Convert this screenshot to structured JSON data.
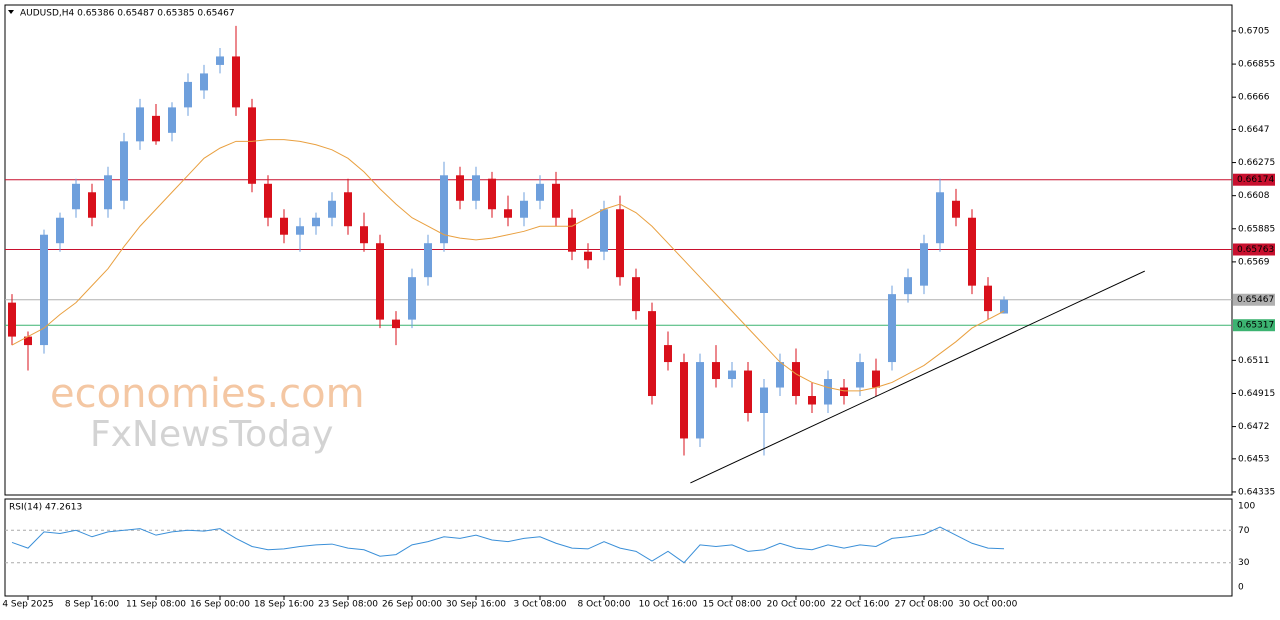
{
  "chart_data": [
    {
      "type": "candlestick",
      "title": "AUDUSD,H4  0.65386 0.65487 0.65385 0.65467",
      "categories": [
        null,
        "4 Sep 2025",
        null,
        null,
        null,
        "8 Sep 16:00",
        null,
        null,
        null,
        "11 Sep 08:00",
        null,
        null,
        null,
        "16 Sep 00:00",
        null,
        null,
        null,
        "18 Sep 16:00",
        null,
        null,
        null,
        "23 Sep 08:00",
        null,
        null,
        null,
        "26 Sep 00:00",
        null,
        null,
        null,
        "30 Sep 16:00",
        null,
        null,
        null,
        "3 Oct 08:00",
        null,
        null,
        null,
        "8 Oct 00:00",
        null,
        null,
        null,
        "10 Oct 16:00",
        null,
        null,
        null,
        "15 Oct 08:00",
        null,
        null,
        null,
        "20 Oct 00:00",
        null,
        null,
        null,
        "22 Oct 16:00",
        null,
        null,
        null,
        "27 Oct 08:00",
        null,
        null,
        null,
        "30 Oct 00:00",
        null
      ],
      "open": [
        0.6545,
        0.6525,
        0.652,
        0.658,
        0.66,
        0.661,
        0.66,
        0.6605,
        0.664,
        0.6655,
        0.6645,
        0.666,
        0.667,
        0.6685,
        0.669,
        0.666,
        0.6615,
        0.6595,
        0.6585,
        0.659,
        0.6595,
        0.661,
        0.659,
        0.658,
        0.6535,
        0.6535,
        0.656,
        0.658,
        0.662,
        0.6605,
        0.6618,
        0.66,
        0.6595,
        0.6605,
        0.6615,
        0.6595,
        0.6575,
        0.6575,
        0.66,
        0.656,
        0.654,
        0.652,
        0.651,
        0.6465,
        0.651,
        0.65,
        0.6505,
        0.648,
        0.6495,
        0.651,
        0.649,
        0.6485,
        0.6495,
        0.6495,
        0.6505,
        0.651,
        0.655,
        0.6555,
        0.658,
        0.6605,
        0.6595,
        0.6555,
        0.65386
      ],
      "high": [
        0.655,
        0.6528,
        0.6588,
        0.6598,
        0.6618,
        0.6615,
        0.6625,
        0.6645,
        0.6665,
        0.6662,
        0.6663,
        0.668,
        0.6685,
        0.6695,
        0.6708,
        0.6665,
        0.662,
        0.66,
        0.6595,
        0.6598,
        0.661,
        0.6618,
        0.6598,
        0.6585,
        0.654,
        0.6565,
        0.6585,
        0.6628,
        0.6625,
        0.6625,
        0.6622,
        0.6608,
        0.661,
        0.662,
        0.6622,
        0.66,
        0.658,
        0.6605,
        0.6608,
        0.6565,
        0.6545,
        0.6528,
        0.6515,
        0.6515,
        0.652,
        0.651,
        0.651,
        0.65,
        0.6515,
        0.6518,
        0.6498,
        0.6505,
        0.65,
        0.6515,
        0.6512,
        0.6555,
        0.6565,
        0.6585,
        0.6618,
        0.6612,
        0.66,
        0.656,
        0.65487
      ],
      "low": [
        0.652,
        0.6505,
        0.6515,
        0.6575,
        0.6595,
        0.659,
        0.6595,
        0.66,
        0.6635,
        0.6638,
        0.664,
        0.6655,
        0.6665,
        0.668,
        0.6655,
        0.661,
        0.659,
        0.658,
        0.6575,
        0.6585,
        0.659,
        0.6585,
        0.6575,
        0.653,
        0.652,
        0.653,
        0.6555,
        0.6575,
        0.66,
        0.66,
        0.6595,
        0.659,
        0.659,
        0.66,
        0.659,
        0.657,
        0.6565,
        0.657,
        0.6555,
        0.6535,
        0.6485,
        0.6505,
        0.6455,
        0.646,
        0.6495,
        0.6495,
        0.6475,
        0.6455,
        0.649,
        0.6485,
        0.648,
        0.648,
        0.6485,
        0.649,
        0.649,
        0.6505,
        0.6545,
        0.655,
        0.6575,
        0.659,
        0.655,
        0.6535,
        0.65385
      ],
      "close": [
        0.6525,
        0.652,
        0.6585,
        0.6595,
        0.6615,
        0.6595,
        0.662,
        0.664,
        0.666,
        0.664,
        0.666,
        0.6675,
        0.668,
        0.669,
        0.666,
        0.6615,
        0.6595,
        0.6585,
        0.659,
        0.6595,
        0.6605,
        0.659,
        0.658,
        0.6535,
        0.653,
        0.656,
        0.658,
        0.662,
        0.6605,
        0.662,
        0.66,
        0.6595,
        0.6605,
        0.6615,
        0.6595,
        0.6575,
        0.657,
        0.66,
        0.656,
        0.654,
        0.649,
        0.651,
        0.6465,
        0.651,
        0.65,
        0.6505,
        0.648,
        0.6495,
        0.651,
        0.649,
        0.6485,
        0.65,
        0.649,
        0.651,
        0.6495,
        0.655,
        0.656,
        0.658,
        0.661,
        0.6595,
        0.6555,
        0.654,
        0.65467
      ],
      "up_color": "#6e9fdc",
      "down_color": "#d8101b",
      "ma": {
        "color": "#e9a040",
        "values": [
          0.652,
          0.6525,
          0.653,
          0.6538,
          0.6545,
          0.6555,
          0.6565,
          0.6578,
          0.659,
          0.66,
          0.661,
          0.662,
          0.663,
          0.6636,
          0.664,
          0.664,
          0.6641,
          0.6641,
          0.664,
          0.6638,
          0.6635,
          0.663,
          0.6622,
          0.6612,
          0.6603,
          0.6595,
          0.659,
          0.6585,
          0.6583,
          0.6582,
          0.6583,
          0.6585,
          0.6587,
          0.659,
          0.659,
          0.659,
          0.6595,
          0.66,
          0.6603,
          0.6598,
          0.659,
          0.658,
          0.657,
          0.656,
          0.655,
          0.654,
          0.653,
          0.652,
          0.651,
          0.6503,
          0.6498,
          0.6495,
          0.6493,
          0.6493,
          0.6495,
          0.6498,
          0.6503,
          0.6508,
          0.6515,
          0.6522,
          0.653,
          0.6535,
          0.654
        ]
      },
      "levels": [
        {
          "value": 0.66174,
          "label": "0.66174",
          "color": "#c8102e"
        },
        {
          "value": 0.65763,
          "label": "0.65763",
          "color": "#c8102e"
        },
        {
          "value": 0.65467,
          "label": "0.65467",
          "color": "#b0b0b0"
        },
        {
          "value": 0.65317,
          "label": "0.65317",
          "color": "#3cb371"
        }
      ],
      "trendline": {
        "x": [
          42.4,
          70.8
        ],
        "y": [
          0.64388,
          0.65636
        ],
        "color": "#000000"
      },
      "ylim": [
        0.64317,
        0.67203
      ],
      "yticks": [
        0.6705,
        0.66855,
        0.6666,
        0.6647,
        0.66275,
        0.6608,
        0.65885,
        0.6569,
        0.6511,
        0.64915,
        0.6472,
        0.6453,
        0.64335
      ],
      "watermark": [
        "economies.com",
        "FxNewsToday"
      ]
    },
    {
      "type": "line",
      "title": "RSI(14) 47.2613",
      "values": [
        55,
        48,
        68,
        66,
        70,
        62,
        68,
        70,
        72,
        64,
        68,
        70,
        69,
        72,
        60,
        50,
        46,
        47,
        50,
        52,
        53,
        48,
        46,
        38,
        40,
        52,
        56,
        62,
        60,
        64,
        58,
        56,
        60,
        62,
        54,
        48,
        47,
        56,
        48,
        44,
        32,
        44,
        30,
        52,
        50,
        52,
        44,
        46,
        54,
        48,
        46,
        52,
        48,
        52,
        50,
        60,
        62,
        65,
        74,
        64,
        54,
        48,
        47.2613
      ],
      "color": "#3a8fd8",
      "ylim": [
        0,
        100
      ],
      "yticks": [
        0,
        30,
        70,
        100
      ]
    }
  ]
}
